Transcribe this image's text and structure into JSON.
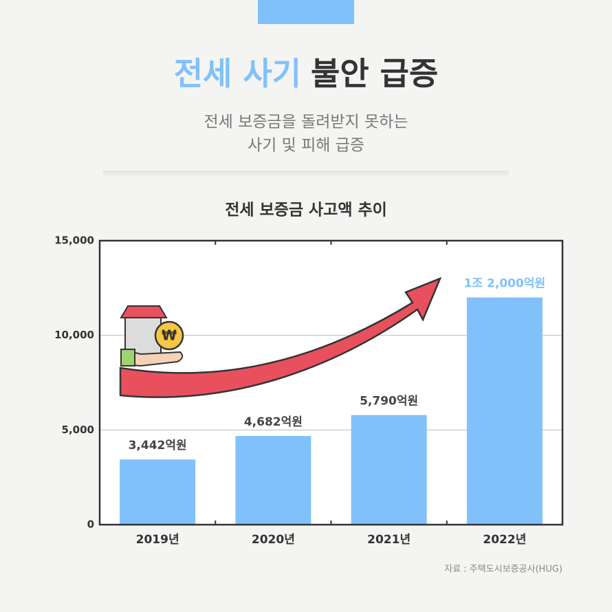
{
  "header": {
    "tag_color": "#80c1fb",
    "title_highlight": "전세 사기",
    "title_rest": "불안 급증",
    "subtitle_lines": [
      "전세 보증금을 돌려받지 못하는",
      "사기 및 피해 급증"
    ]
  },
  "chart_data": {
    "type": "bar",
    "title": "전세 보증금 사고액 추이",
    "categories": [
      "2019년",
      "2020년",
      "2021년",
      "2022년"
    ],
    "values": [
      3442,
      4682,
      5790,
      12000
    ],
    "value_labels": [
      "3,442억원",
      "4,682억원",
      "5,790억원",
      "1조 2,000억원"
    ],
    "value_label_colors": [
      "#444444",
      "#444444",
      "#444444",
      "#80c1fb"
    ],
    "color": "#80c1fb",
    "ylim": [
      0,
      15000
    ],
    "yticks": [
      0,
      {
        "value": 5000,
        "label": "5,000"
      },
      {
        "value": 10000,
        "label": "10,000"
      },
      {
        "value": 15000,
        "label": "15,000"
      }
    ],
    "grid": true
  },
  "source": "자료 : 주택도시보증공사(HUG)"
}
